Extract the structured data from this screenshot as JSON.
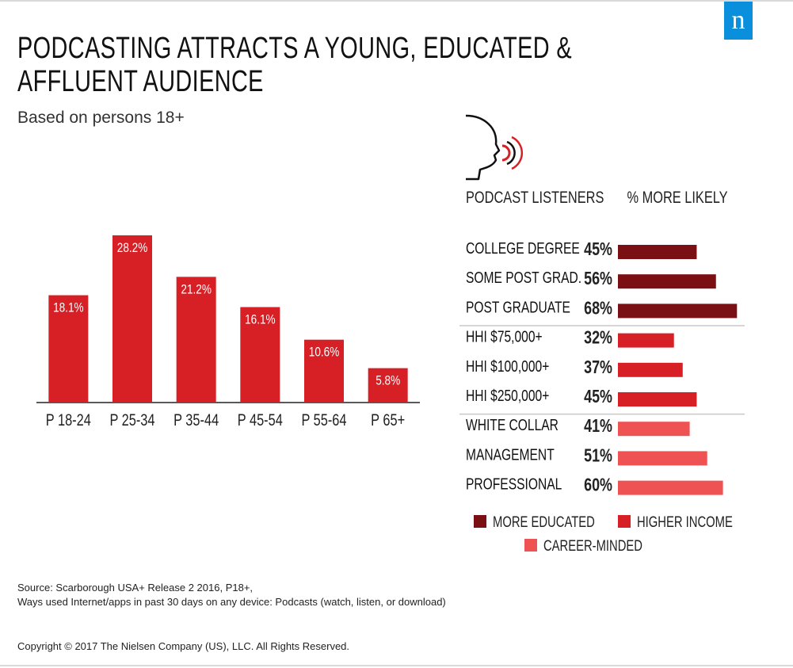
{
  "brand": {
    "logo_letter": "n",
    "logo_color": "#0a8fdc"
  },
  "title_lines": [
    "PODCASTING ATTRACTS A YOUNG, EDUCATED &",
    "AFFLUENT AUDIENCE"
  ],
  "subtitle": "Based on persons 18+",
  "chart_data": [
    {
      "type": "bar",
      "categories": [
        "P 18-24",
        "P 25-34",
        "P 35-44",
        "P 45-54",
        "P 55-64",
        "P 65+"
      ],
      "values": [
        18.1,
        28.2,
        21.2,
        16.1,
        10.6,
        5.8
      ],
      "value_labels": [
        "18.1%",
        "28.2%",
        "21.2%",
        "16.1%",
        "10.6%",
        "5.8%"
      ],
      "color": "#d71f26",
      "ylim": [
        0,
        28.2
      ],
      "grid": false
    },
    {
      "type": "bar",
      "orientation": "horizontal",
      "column_headers": [
        "PODCAST LISTENERS",
        "% MORE LIKELY"
      ],
      "categories": [
        "COLLEGE DEGREE",
        "SOME POST GRAD.",
        "POST GRADUATE",
        "HHI $75,000+",
        "HHI $100,000+",
        "HHI $250,000+",
        "WHITE COLLAR",
        "MANAGEMENT",
        "PROFESSIONAL"
      ],
      "values": [
        45,
        56,
        68,
        32,
        37,
        45,
        41,
        51,
        60
      ],
      "value_labels": [
        "45%",
        "56%",
        "68%",
        "32%",
        "37%",
        "45%",
        "41%",
        "51%",
        "60%"
      ],
      "groups": [
        0,
        0,
        0,
        1,
        1,
        1,
        2,
        2,
        2
      ],
      "legend": [
        {
          "name": "MORE EDUCATED",
          "color": "#7b1014"
        },
        {
          "name": "HIGHER INCOME",
          "color": "#d71f26"
        },
        {
          "name": "CAREER-MINDED",
          "color": "#ef5252"
        }
      ],
      "legend_position": "bottom",
      "grid": false
    }
  ],
  "footnotes": {
    "source_line1": "Source: Scarborough USA+ Release 2 2016, P18+,",
    "source_line2": "Ways used Internet/apps in past 30 days on any device: Podcasts (watch, listen, or download)",
    "copyright": "Copyright © 2017 The Nielsen Company (US), LLC. All Rights Reserved."
  },
  "icons": {
    "listener": "head-sound-icon"
  }
}
